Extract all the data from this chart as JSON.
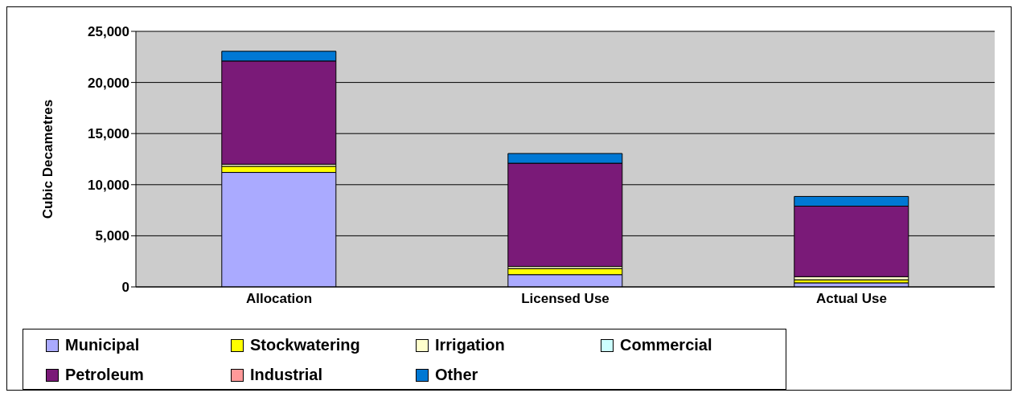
{
  "chart_data": {
    "type": "bar",
    "stacked": true,
    "ylabel": "Cubic Decametres",
    "categories": [
      "Allocation",
      "Licensed Use",
      "Actual Use"
    ],
    "series": [
      {
        "name": "Municipal",
        "color": "#aaaaff",
        "values": [
          11200,
          1200,
          400
        ]
      },
      {
        "name": "Stockwatering",
        "color": "#ffff00",
        "values": [
          600,
          600,
          300
        ]
      },
      {
        "name": "Irrigation",
        "color": "#ffffcc",
        "values": [
          200,
          200,
          300
        ]
      },
      {
        "name": "Commercial",
        "color": "#ccffff",
        "values": [
          0,
          0,
          0
        ]
      },
      {
        "name": "Petroleum",
        "color": "#7a1a78",
        "values": [
          10100,
          10100,
          6900
        ]
      },
      {
        "name": "Industrial",
        "color": "#ff9999",
        "values": [
          0,
          0,
          0
        ]
      },
      {
        "name": "Other",
        "color": "#0078d4",
        "values": [
          950,
          950,
          950
        ]
      }
    ],
    "ylim": [
      0,
      25000
    ],
    "yticks": [
      0,
      {
        "value": 5000,
        "label": "5,000"
      },
      {
        "value": 10000,
        "label": "10,000"
      },
      {
        "value": 15000,
        "label": "15,000"
      },
      {
        "value": 20000,
        "label": "20,000"
      },
      {
        "value": 25000,
        "label": "25,000"
      }
    ],
    "grid": "y",
    "legend": "bottom"
  }
}
